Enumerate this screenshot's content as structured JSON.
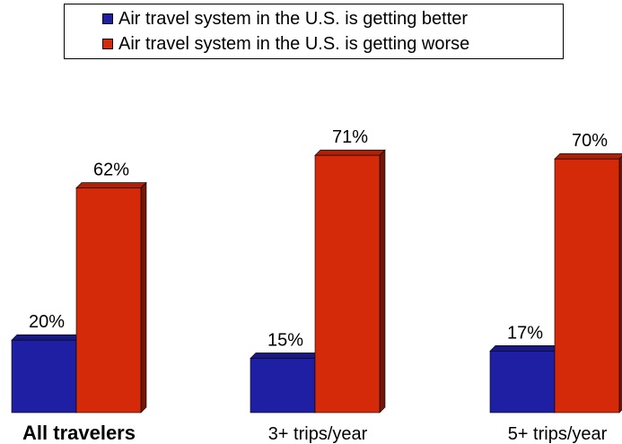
{
  "chart_data": {
    "type": "bar",
    "categories": [
      "All travelers",
      "3+ trips/year",
      "5+ trips/year"
    ],
    "series": [
      {
        "name": "Air travel system in the U.S. is getting better",
        "values": [
          20,
          15,
          17
        ],
        "color": "#1f1fa3"
      },
      {
        "name": "Air travel system in the U.S. is getting worse",
        "values": [
          62,
          71,
          70
        ],
        "color": "#d42a0a"
      }
    ],
    "value_suffix": "%",
    "bold_categories": [
      "All travelers"
    ],
    "ylim": [
      0,
      80
    ],
    "grid": false,
    "legend_position": "top-center",
    "title": "",
    "xlabel": "",
    "ylabel": ""
  }
}
